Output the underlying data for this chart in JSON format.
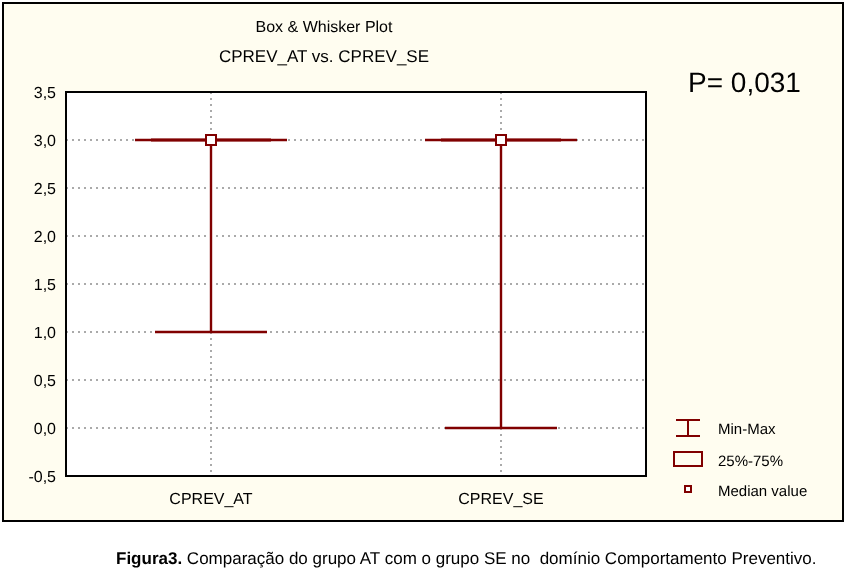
{
  "chart_data": {
    "type": "box",
    "title": "Box & Whisker Plot",
    "subtitle": "CPREV_AT vs. CPREV_SE",
    "categories": [
      "CPREV_AT",
      "CPREV_SE"
    ],
    "series": [
      {
        "color": "#800000",
        "boxes": [
          {
            "low": 1.0,
            "q1": 3.0,
            "median": 3.0,
            "q3": 3.0,
            "high": 3.0
          },
          {
            "low": 0.0,
            "q1": 3.0,
            "median": 3.0,
            "q3": 3.0,
            "high": 3.0
          }
        ]
      },
      {
        "type": "scatter",
        "name": "Median value",
        "color": "#800000",
        "marker": "square",
        "x": [
          "CPREV_AT",
          "CPREV_SE"
        ],
        "values": [
          3.0,
          3.0
        ]
      }
    ],
    "ylim": [
      -0.5,
      3.5
    ],
    "yticks": [
      {
        "value": -0.5,
        "label": "-0,5"
      },
      {
        "value": 0,
        "label": "0,0"
      },
      {
        "value": 0.5,
        "label": "0,5"
      },
      {
        "value": 1,
        "label": "1,0"
      },
      {
        "value": 1.5,
        "label": "1,5"
      },
      {
        "value": 2,
        "label": "2,0"
      },
      {
        "value": 2.5,
        "label": "2,5"
      },
      {
        "value": 3,
        "label": "3,0"
      },
      {
        "value": 3.5,
        "label": "3,5"
      }
    ],
    "grid": true,
    "annotations": [
      "P= 0,031",
      "Min-Max",
      "25%-75%",
      "Figura3. Comparação do grupo AT com o grupo SE no  domínio Comportamento Preventivo."
    ]
  }
}
